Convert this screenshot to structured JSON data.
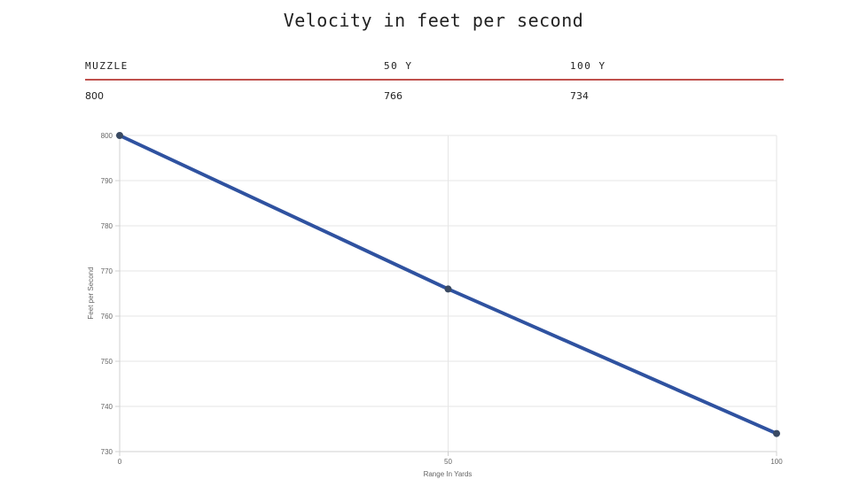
{
  "title": "Velocity in feet per second",
  "table": {
    "headers": [
      "MUZZLE",
      "50 Y",
      "100 Y"
    ],
    "values": [
      "800",
      "766",
      "734"
    ]
  },
  "colors": {
    "line": "#2f52a0",
    "point": "#3a4a63",
    "header_rule": "#c0504d",
    "grid": "#e6e6e6"
  },
  "chart_data": {
    "type": "line",
    "title": "Velocity in feet per second",
    "xlabel": "Range In Yards",
    "ylabel": "Feet per Second",
    "x": [
      0,
      50,
      100
    ],
    "xticks": [
      "0",
      "50",
      "100"
    ],
    "yticks": [
      "730",
      "740",
      "750",
      "760",
      "770",
      "780",
      "790",
      "800"
    ],
    "xlim": [
      0,
      100
    ],
    "ylim": [
      730,
      800
    ],
    "grid": true,
    "series": [
      {
        "values": [
          800,
          766,
          734
        ]
      }
    ]
  }
}
